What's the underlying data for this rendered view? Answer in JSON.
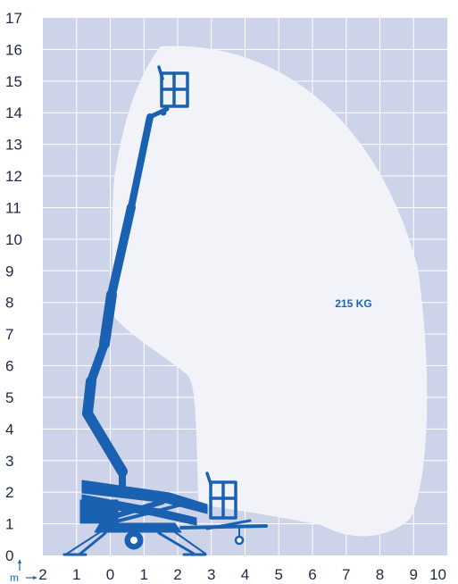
{
  "x_ticks": [
    "2",
    "1",
    "0",
    "1",
    "2",
    "3",
    "4",
    "5",
    "6",
    "7",
    "8",
    "9",
    "10"
  ],
  "y_ticks": [
    "0",
    "1",
    "2",
    "3",
    "4",
    "5",
    "6",
    "7",
    "8",
    "9",
    "10",
    "11",
    "12",
    "13",
    "14",
    "15",
    "16",
    "17"
  ],
  "capacity_label": "215 KG",
  "unit_label": "m",
  "colors": {
    "grid_background": "#cdd3e9",
    "grid_lines": "#ffffff",
    "working_envelope": "#f1f3f9",
    "platform_machine": "#1a61b1",
    "label_blue": "#1f63b5",
    "tick_text": "#1e2a44"
  }
}
